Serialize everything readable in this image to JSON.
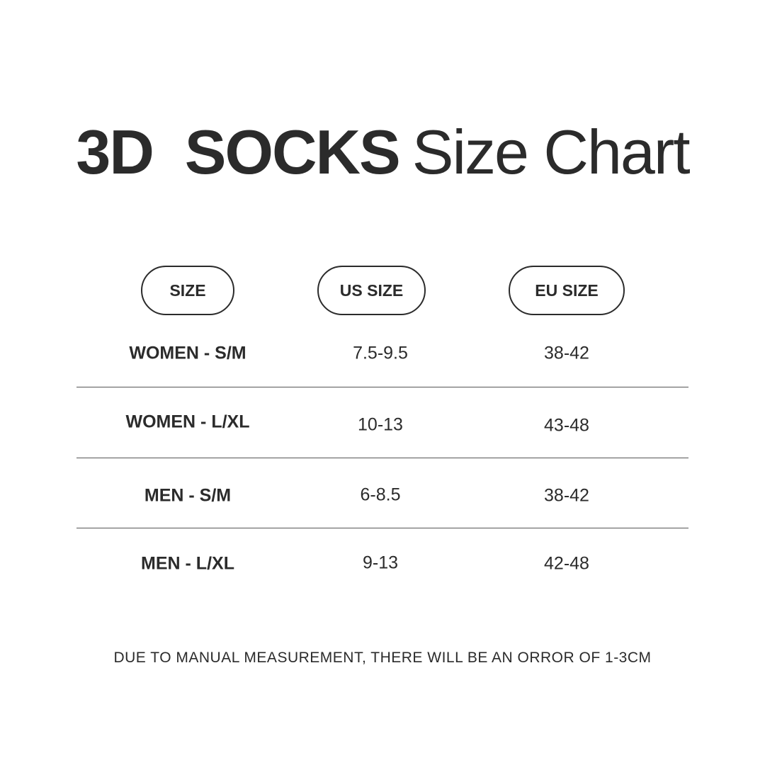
{
  "title": {
    "bold": "3D  SOCKS",
    "regular": "Size Chart"
  },
  "headers": [
    "SIZE",
    "US SIZE",
    "EU SIZE"
  ],
  "rows": [
    {
      "size": "WOMEN - S/M",
      "us": "7.5-9.5",
      "eu": "38-42"
    },
    {
      "size": "WOMEN - L/XL",
      "us": "10-13",
      "eu": "43-48"
    },
    {
      "size": "MEN - S/M",
      "us": "6-8.5",
      "eu": "38-42"
    },
    {
      "size": "MEN - L/XL",
      "us": "9-13",
      "eu": "42-48"
    }
  ],
  "footer": "DUE TO MANUAL MEASUREMENT, THERE WILL BE AN ORROR OF 1-3CM"
}
